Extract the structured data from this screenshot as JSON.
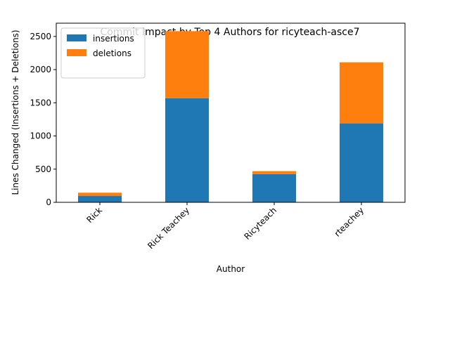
{
  "chart_data": {
    "type": "bar",
    "stacked": true,
    "title": "Commit Impact by Top 4 Authors for ricyteach-asce7",
    "xlabel": "Author",
    "ylabel": "Lines Changed (Insertions + Deletions)",
    "categories": [
      "Rick",
      "Rick Teachey",
      "Ricyteach",
      "rteachey"
    ],
    "series": [
      {
        "name": "insertions",
        "color": "#1f77b4",
        "values": [
          95,
          1570,
          425,
          1190
        ]
      },
      {
        "name": "deletions",
        "color": "#ff7f0e",
        "values": [
          50,
          1010,
          45,
          920
        ]
      }
    ],
    "ylim": [
      0,
      2700
    ],
    "yticks": [
      0,
      500,
      1000,
      1500,
      2000,
      2500
    ],
    "ytick_labels": [
      "0",
      "500",
      "1000",
      "1500",
      "2000",
      "2500"
    ],
    "grid": false,
    "legend_position": "top-left"
  }
}
